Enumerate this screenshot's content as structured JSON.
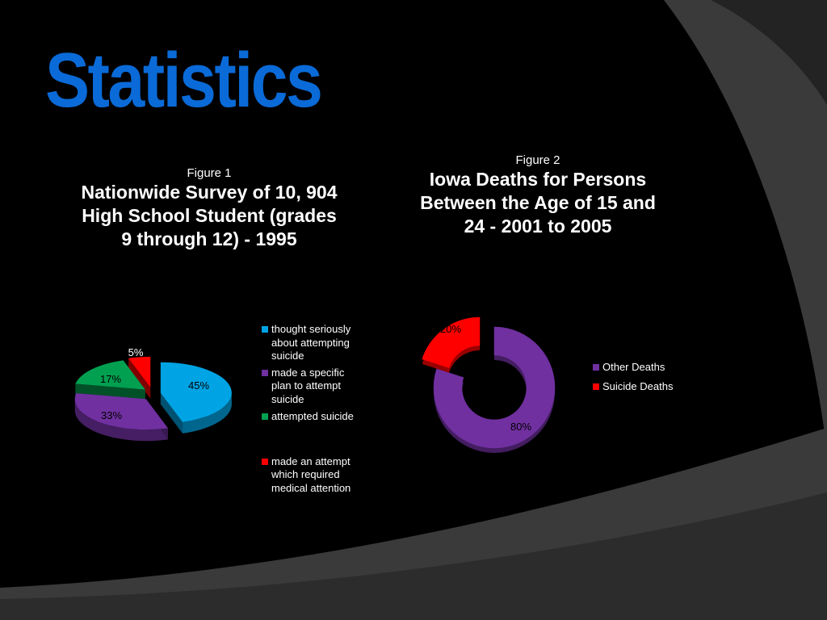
{
  "slide": {
    "title": "Statistics",
    "colors": {
      "background": "#000000",
      "title": "#0a6ad8",
      "band_light": "#3a3a3a",
      "band_dark": "#232323"
    }
  },
  "chart_data": [
    {
      "type": "pie",
      "figure_label": "Figure 1",
      "title": "Nationwide Survey of 10, 904 High School Student (grades 9 through 12) - 1995",
      "categories": [
        "thought seriously about attempting suicide",
        "made a specific plan to attempt suicide",
        "attempted suicide",
        "made an attempt which required medical attention"
      ],
      "values": [
        45,
        33,
        17,
        5
      ],
      "data_labels": [
        "45%",
        "33%",
        "17%",
        "5%"
      ],
      "colors": [
        "#00a4e4",
        "#7030a0",
        "#00a050",
        "#ff0000"
      ],
      "style": "exploded 3d",
      "legend_position": "right"
    },
    {
      "type": "pie",
      "figure_label": "Figure 2",
      "title": "Iowa Deaths for Persons Between the Age of 15 and 24 - 2001 to 2005",
      "categories": [
        "Other Deaths",
        "Suicide Deaths"
      ],
      "values": [
        80,
        20
      ],
      "data_labels": [
        "80%",
        "20%"
      ],
      "colors": [
        "#7030a0",
        "#ff0000"
      ],
      "style": "exploded doughnut",
      "legend_position": "right"
    }
  ]
}
